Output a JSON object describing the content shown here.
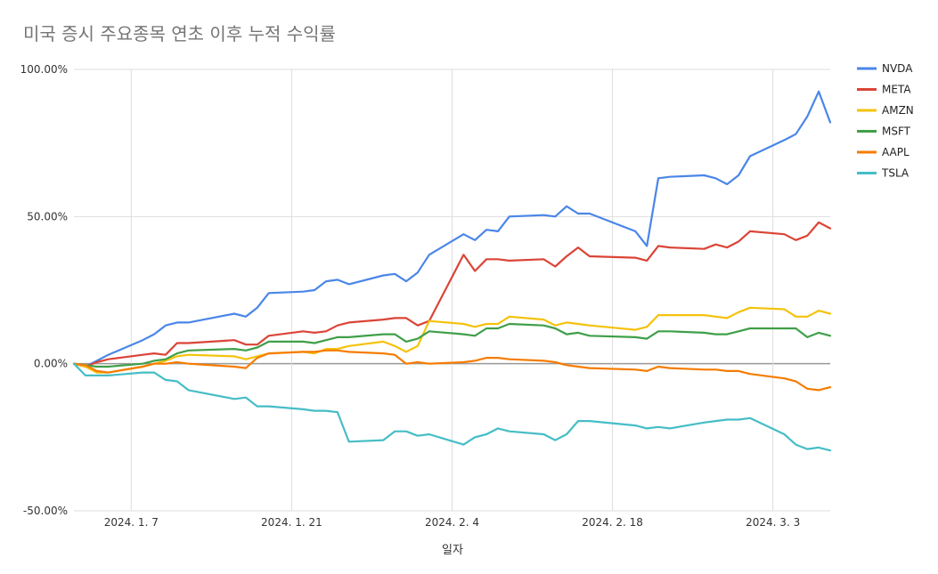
{
  "chart_data": {
    "type": "line",
    "title": "미국 증시 주요종목 연초 이후 누적 수익률",
    "xlabel": "일자",
    "ylabel": "",
    "x_tick_labels": [
      "2024. 1. 7",
      "2024. 1. 21",
      "2024. 2. 4",
      "2024. 2. 18",
      "2024. 3. 3"
    ],
    "y_tick_labels": [
      "100.00%",
      "50.00%",
      "0.00%",
      "-50.00%"
    ],
    "ylim": [
      -50,
      100
    ],
    "xlim": [
      "2024-01-02",
      "2024-03-08"
    ],
    "grid": true,
    "legend_position": "right",
    "x": [
      "2024-01-02",
      "2024-01-03",
      "2024-01-04",
      "2024-01-05",
      "2024-01-08",
      "2024-01-09",
      "2024-01-10",
      "2024-01-11",
      "2024-01-12",
      "2024-01-16",
      "2024-01-17",
      "2024-01-18",
      "2024-01-19",
      "2024-01-22",
      "2024-01-23",
      "2024-01-24",
      "2024-01-25",
      "2024-01-26",
      "2024-01-29",
      "2024-01-30",
      "2024-01-31",
      "2024-02-01",
      "2024-02-02",
      "2024-02-05",
      "2024-02-06",
      "2024-02-07",
      "2024-02-08",
      "2024-02-09",
      "2024-02-12",
      "2024-02-13",
      "2024-02-14",
      "2024-02-15",
      "2024-02-16",
      "2024-02-20",
      "2024-02-21",
      "2024-02-22",
      "2024-02-23",
      "2024-02-26",
      "2024-02-27",
      "2024-02-28",
      "2024-02-29",
      "2024-03-01",
      "2024-03-04",
      "2024-03-05",
      "2024-03-06",
      "2024-03-07",
      "2024-03-08"
    ],
    "series": [
      {
        "name": "NVDA",
        "color": "#4a86e8",
        "values": [
          0,
          -1,
          1,
          3,
          8,
          10,
          13,
          14,
          14,
          17,
          16,
          19,
          24,
          24.5,
          25,
          28,
          28.5,
          27,
          30,
          30.5,
          28,
          31,
          37,
          44,
          42,
          45.5,
          45,
          50,
          50.5,
          50,
          53.5,
          51,
          51,
          45,
          40,
          63,
          63.5,
          64,
          63,
          61,
          64,
          70.5,
          76,
          78,
          84,
          92.5,
          82
        ]
      },
      {
        "name": "META",
        "color": "#db4437",
        "values": [
          0,
          -1,
          0.5,
          1.5,
          3,
          3.5,
          3,
          7,
          7,
          8,
          6.5,
          6.5,
          9.5,
          11,
          10.5,
          11,
          13,
          14,
          15,
          15.5,
          15.5,
          13,
          14.5,
          37,
          31.5,
          35.5,
          35.5,
          35,
          35.5,
          33,
          36.5,
          39.5,
          36.5,
          36,
          35,
          40,
          39.5,
          39,
          40.5,
          39.5,
          41.5,
          45,
          44,
          42,
          43.5,
          48,
          46
        ]
      },
      {
        "name": "AMZN",
        "color": "#f4c20d",
        "values": [
          0,
          -1,
          -3,
          -3,
          -1,
          0,
          1,
          2.5,
          3,
          2.5,
          1.5,
          2.5,
          3.5,
          4,
          3.5,
          5,
          5,
          6,
          7.5,
          6,
          4,
          6,
          14.5,
          13.5,
          12.5,
          13.5,
          13.5,
          16,
          15,
          13,
          14,
          13.5,
          13,
          11.5,
          12.5,
          16.5,
          16.5,
          16.5,
          16,
          15.5,
          17.5,
          19,
          18.5,
          16,
          16,
          18,
          17
        ]
      },
      {
        "name": "MSFT",
        "color": "#3f9f49",
        "values": [
          0,
          -0.5,
          -1,
          -1,
          0,
          1,
          1.5,
          3.5,
          4.5,
          5,
          4.5,
          5.5,
          7.5,
          7.5,
          7,
          8,
          9,
          9,
          10,
          10,
          7.5,
          8.5,
          11,
          10,
          9.5,
          12,
          12,
          13.5,
          13,
          12,
          10,
          10.5,
          9.5,
          9,
          8.5,
          11,
          11,
          10.5,
          10,
          10,
          11,
          12,
          12,
          12,
          9,
          10.5,
          9.5
        ]
      },
      {
        "name": "AAPL",
        "color": "#f57c00",
        "values": [
          0,
          -0.5,
          -2.5,
          -3,
          -1,
          0,
          0,
          0.5,
          0,
          -1,
          -1.5,
          2,
          3.5,
          4,
          4,
          4.5,
          4.5,
          4,
          3.5,
          3,
          0,
          0.5,
          0,
          0.5,
          1,
          2,
          2,
          1.5,
          1,
          0.5,
          -0.5,
          -1,
          -1.5,
          -2,
          -2.5,
          -1,
          -1.5,
          -2,
          -2,
          -2.5,
          -2.5,
          -3.5,
          -5,
          -6,
          -8.5,
          -9,
          -8
        ]
      },
      {
        "name": "TSLA",
        "color": "#46bdc6",
        "values": [
          0,
          -4,
          -4,
          -4,
          -3,
          -3,
          -5.5,
          -6,
          -9,
          -12,
          -11.5,
          -14.5,
          -14.5,
          -15.5,
          -16,
          -16,
          -16.5,
          -26.5,
          -26,
          -23,
          -23,
          -24.5,
          -24,
          -27.5,
          -25,
          -24,
          -22,
          -23,
          -24,
          -26,
          -24,
          -19.5,
          -19.5,
          -21,
          -22,
          -21.5,
          -22,
          -20,
          -19.5,
          -19,
          -19,
          -18.5,
          -24,
          -27.5,
          -29,
          -28.5,
          -29.5
        ]
      }
    ]
  }
}
